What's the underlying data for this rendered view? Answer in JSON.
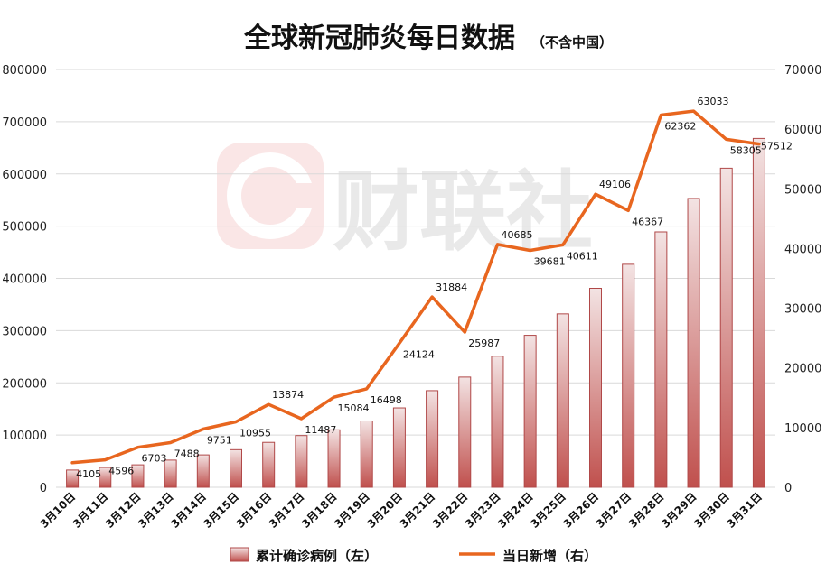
{
  "chart_data": {
    "type": "bar+line",
    "title": "全球新冠肺炎每日数据",
    "subtitle": "（不含中国）",
    "categories": [
      "3月10日",
      "3月11日",
      "3月12日",
      "3月13日",
      "3月14日",
      "3月15日",
      "3月16日",
      "3月17日",
      "3月18日",
      "3月19日",
      "3月20日",
      "3月21日",
      "3月22日",
      "3月23日",
      "3月24日",
      "3月25日",
      "3月26日",
      "3月27日",
      "3月28日",
      "3月29日",
      "3月30日",
      "3月31日"
    ],
    "series": [
      {
        "name": "累计确诊病例（左）",
        "type": "bar",
        "axis": "left",
        "values": [
          33000,
          38000,
          43000,
          52000,
          62000,
          72000,
          86000,
          99000,
          110000,
          127000,
          152000,
          185000,
          211000,
          251000,
          291000,
          332000,
          381000,
          427000,
          489000,
          553000,
          611000,
          668000
        ]
      },
      {
        "name": "当日新增（右）",
        "type": "line",
        "axis": "right",
        "values": [
          4105,
          4596,
          6703,
          7488,
          9751,
          10955,
          13874,
          11487,
          15084,
          16498,
          24124,
          31884,
          25987,
          40685,
          39681,
          40611,
          49106,
          46367,
          62362,
          63033,
          58305,
          57512
        ],
        "labels": [
          "4105",
          "4596",
          "6703",
          "7488",
          "9751",
          "10955",
          "13874",
          "11487",
          "15084",
          "16498",
          "24124",
          "31884",
          "25987",
          "40685",
          "39681",
          "40611",
          "49106",
          "46367",
          "62362",
          "63033",
          "58305",
          "57512"
        ]
      }
    ],
    "y_left": {
      "min": 0,
      "max": 800000,
      "ticks": [
        "0",
        "100000",
        "200000",
        "300000",
        "400000",
        "500000",
        "600000",
        "700000",
        "800000"
      ]
    },
    "y_right": {
      "min": 0,
      "max": 70000,
      "ticks": [
        "0",
        "10000",
        "20000",
        "30000",
        "40000",
        "50000",
        "60000",
        "70000"
      ]
    },
    "grid": true,
    "legend_position": "bottom",
    "watermark": "财联社",
    "colors": {
      "bar_top": "#f3e3e3",
      "bar_bottom": "#c0504d",
      "bar_edge": "#b04848",
      "line": "#e8661f",
      "grid": "#d9d9d9"
    }
  }
}
